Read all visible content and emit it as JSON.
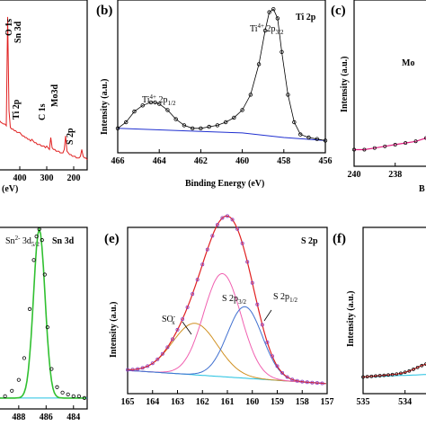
{
  "chart_data": [
    {
      "panel": "a",
      "type": "line",
      "x_tick_labels": [
        "400",
        "300",
        "200"
      ],
      "xlabel_fragment": "(eV)",
      "xlim": [
        480,
        150
      ],
      "annotations": [
        "O 1s",
        "Sn 3d",
        "Ti 2p",
        "C 1s",
        "Mo3d",
        "S 2p"
      ],
      "series": [
        {
          "color": "#e02020",
          "x": [
            480,
            470,
            460,
            455,
            450,
            445,
            440,
            435,
            430,
            425,
            420,
            415,
            410,
            405,
            400,
            395,
            390,
            385,
            380,
            375,
            370,
            365,
            360,
            355,
            350,
            345,
            340,
            335,
            330,
            325,
            320,
            315,
            310,
            305,
            300,
            295,
            290,
            285,
            280,
            275,
            270,
            265,
            260,
            255,
            250,
            245,
            240,
            235,
            230,
            225,
            220,
            215,
            210,
            205,
            200,
            195,
            190,
            185,
            180,
            175,
            170,
            165,
            160,
            155,
            150
          ],
          "y": [
            0.3,
            0.28,
            0.27,
            0.27,
            0.26,
            0.9,
            0.35,
            0.25,
            0.24,
            0.24,
            0.23,
            0.23,
            0.22,
            0.22,
            0.22,
            0.21,
            0.2,
            0.2,
            0.19,
            0.19,
            0.18,
            0.18,
            0.17,
            0.18,
            0.17,
            0.16,
            0.16,
            0.15,
            0.15,
            0.15,
            0.14,
            0.14,
            0.14,
            0.13,
            0.14,
            0.13,
            0.12,
            0.19,
            0.13,
            0.12,
            0.12,
            0.11,
            0.11,
            0.11,
            0.1,
            0.1,
            0.1,
            0.12,
            0.2,
            0.11,
            0.1,
            0.09,
            0.09,
            0.08,
            0.08,
            0.08,
            0.07,
            0.07,
            0.07,
            0.08,
            0.12,
            0.08,
            0.07,
            0.07,
            0.06
          ]
        }
      ]
    },
    {
      "panel": "b",
      "type": "line",
      "title": "Ti 2p",
      "xlabel": "Binding Energy (eV)",
      "ylabel": "Intensity (a.u.)",
      "xlim": [
        466,
        456
      ],
      "x_ticks": [
        466,
        464,
        462,
        460,
        458,
        456
      ],
      "annotations": [
        {
          "ion": "Ti",
          "charge": "4+",
          "level": "2p",
          "sub": "1/2"
        },
        {
          "ion": "Ti",
          "charge": "4+",
          "level": "2p",
          "sub": "3/2"
        }
      ],
      "series": [
        {
          "name": "",
          "style": "points",
          "color": "#000000",
          "x": [
            466,
            465.6,
            465.2,
            464.8,
            464.4,
            464.2,
            464.0,
            463.6,
            463.2,
            462.8,
            462.4,
            462.0,
            461.6,
            461.2,
            460.8,
            460.4,
            460.0,
            459.6,
            459.2,
            458.9,
            458.7,
            458.5,
            458.3,
            458.1,
            457.8,
            457.5,
            457.2,
            456.8,
            456.4,
            456.0
          ],
          "y": [
            0.16,
            0.2,
            0.27,
            0.31,
            0.33,
            0.33,
            0.32,
            0.28,
            0.22,
            0.18,
            0.16,
            0.16,
            0.17,
            0.18,
            0.2,
            0.23,
            0.28,
            0.38,
            0.58,
            0.8,
            0.92,
            0.94,
            0.88,
            0.66,
            0.38,
            0.2,
            0.12,
            0.1,
            0.09,
            0.08
          ]
        },
        {
          "name": "",
          "style": "line",
          "color": "#2030d0",
          "x": [
            466,
            464,
            462,
            460,
            458,
            456
          ],
          "y": [
            0.16,
            0.15,
            0.14,
            0.13,
            0.1,
            0.08
          ]
        }
      ]
    },
    {
      "panel": "c",
      "type": "line",
      "ylabel": "Intensity (a.u.)",
      "xlim": [
        240,
        233
      ],
      "x_tick_labels": [
        "240",
        "238",
        "2"
      ],
      "annotation_fragment": "Mo",
      "series": [
        {
          "style": "points+fit",
          "color": "#e02080",
          "x": [
            240,
            239.5,
            239,
            238.5,
            238,
            237.5,
            237,
            236.5,
            236,
            235.8,
            235.6,
            235.4
          ],
          "y": [
            0.1,
            0.1,
            0.11,
            0.12,
            0.13,
            0.14,
            0.15,
            0.17,
            0.3,
            0.5,
            0.7,
            0.82
          ]
        }
      ]
    },
    {
      "panel": "d",
      "type": "line",
      "title": "Sn 3d",
      "xlim": [
        489.5,
        483
      ],
      "x_ticks": [
        488,
        486,
        484
      ],
      "annotations": [
        {
          "ion": "Sn",
          "charge": "2-",
          "level": "3d",
          "sub": "5/2"
        }
      ],
      "series": [
        {
          "style": "points",
          "color": "#000000",
          "x": [
            489.5,
            489,
            488.5,
            488,
            487.6,
            487.2,
            486.9,
            486.7,
            486.5,
            486.3,
            486.1,
            485.9,
            485.6,
            485.2,
            484.8,
            484.4,
            484,
            483.6,
            483.2
          ],
          "y": [
            0.06,
            0.07,
            0.1,
            0.16,
            0.28,
            0.55,
            0.82,
            0.95,
            0.99,
            0.93,
            0.74,
            0.45,
            0.22,
            0.12,
            0.09,
            0.08,
            0.07,
            0.07,
            0.06
          ]
        },
        {
          "style": "fit",
          "color": "#30c030"
        },
        {
          "style": "baseline",
          "color": "#20c0e0"
        }
      ]
    },
    {
      "panel": "e",
      "type": "line",
      "title": "S 2p",
      "xlabel": "",
      "ylabel": "Intensity (a.u.)",
      "xlim": [
        165,
        157
      ],
      "x_ticks": [
        165,
        164,
        163,
        162,
        161,
        160,
        159,
        158,
        157
      ],
      "annotations": [
        {
          "text": "SO",
          "sub": "x",
          "sup": "-"
        },
        {
          "text": "S 2p",
          "sub": "3/2"
        },
        {
          "text": "S 2p",
          "sub": "1/2"
        }
      ],
      "series": [
        {
          "style": "points",
          "color": "#9040c0",
          "name": ""
        },
        {
          "style": "fit",
          "color": "#e02020",
          "name": ""
        },
        {
          "style": "peak",
          "color": "#d09020",
          "center": 162.3,
          "height": 0.31,
          "width": 0.9
        },
        {
          "style": "peak",
          "color": "#f060b0",
          "center": 161.2,
          "height": 0.62,
          "width": 0.75
        },
        {
          "style": "peak",
          "color": "#4070d0",
          "center": 160.3,
          "height": 0.43,
          "width": 0.7
        },
        {
          "style": "baseline",
          "color": "#20c0e0"
        }
      ]
    },
    {
      "panel": "f",
      "type": "line",
      "ylabel": "Intensity (a.u.)",
      "xlim": [
        535,
        532
      ],
      "x_tick_labels": [
        "535",
        "534",
        "53"
      ],
      "series": [
        {
          "style": "points+fit",
          "color": "#e02020"
        },
        {
          "style": "baseline",
          "color": "#20c0e0"
        }
      ]
    }
  ],
  "ui": {
    "panel_b_letter": "(b)",
    "panel_c_letter": "(c)",
    "panel_e_letter": "(e)",
    "panel_f_letter": "(f)",
    "ylabel_text": "Intensity (a.u.)",
    "ylabel_text_spaced": "Intensity  (a.u.)",
    "xlabel_text": "Binding Energy (eV)",
    "panel_a_xlabel": "(eV)",
    "panel_a_labels": {
      "o1s": "O 1s",
      "sn3d": "Sn 3d",
      "ti2p": "Ti 2p",
      "c1s": "C 1s",
      "mo3d": "Mo3d",
      "s2p": "S 2p"
    },
    "panel_b_title": "Ti 2p",
    "panel_d_title": "Sn 3d",
    "panel_e_title": "S 2p",
    "panel_c_fragment": "Mo",
    "panel_c_xlabel_fragment": "B",
    "ti_1": {
      "base": "Ti",
      "sup": "4+",
      "mid": " 2p",
      "sub": "1/2"
    },
    "ti_2": {
      "base": "Ti",
      "sup": "4+",
      "mid": " 2p",
      "sub": "3/2"
    },
    "sn": {
      "base": "Sn",
      "sup": "2-",
      "mid": " 3d",
      "sub": "5/2"
    },
    "sox": {
      "base": "SO",
      "sup": "-",
      "sub": "x"
    },
    "s32": {
      "base": "S 2p",
      "sub": "3/2"
    },
    "s12": {
      "base": "S 2p",
      "sub": "1/2"
    },
    "tick_a": [
      "400",
      "300",
      "200"
    ],
    "tick_b": [
      "466",
      "464",
      "462",
      "460",
      "458",
      "456"
    ],
    "tick_c": [
      "240",
      "238",
      "2"
    ],
    "tick_d": [
      "488",
      "486",
      "484"
    ],
    "tick_e": [
      "165",
      "164",
      "163",
      "162",
      "161",
      "160",
      "159",
      "158",
      "157"
    ],
    "tick_f": [
      "535",
      "534",
      "53"
    ]
  }
}
